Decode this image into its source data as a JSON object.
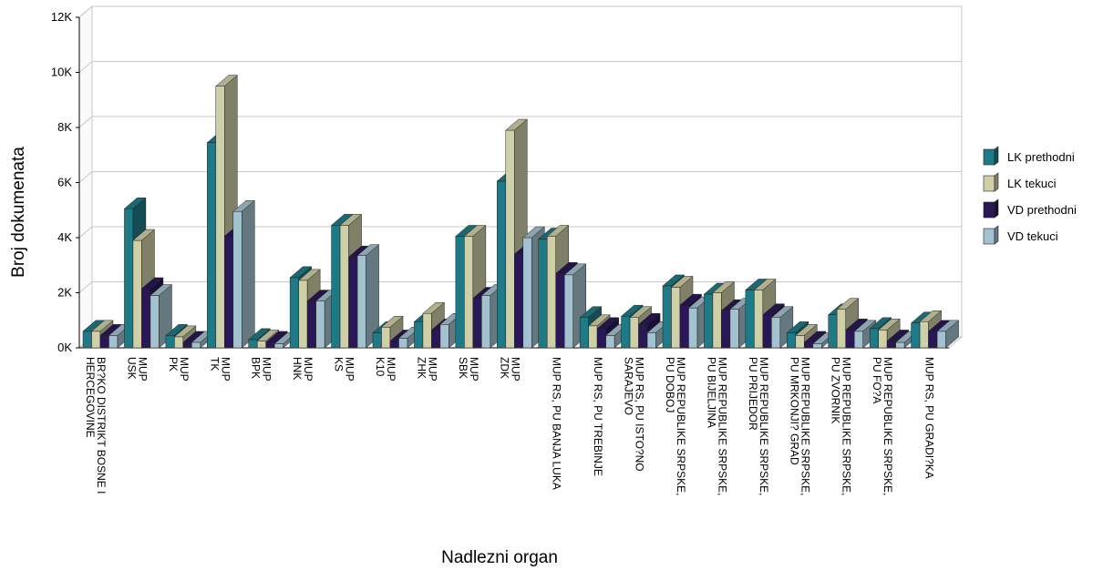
{
  "chart_data": {
    "type": "bar",
    "xlabel": "Nadlezni organ",
    "ylabel": "Broj dokumenata",
    "ylim": [
      0,
      12000
    ],
    "yticks": [
      "0K",
      "2K",
      "4K",
      "6K",
      "8K",
      "10K",
      "12K"
    ],
    "grid": true,
    "legend_position": "right",
    "categories": [
      [
        "BR?KO DISTRIKT BOSNE I",
        "HERCEGOVINE"
      ],
      [
        "MUP",
        "USK"
      ],
      [
        "MUP",
        "PK"
      ],
      [
        "MUP",
        "TK"
      ],
      [
        "MUP",
        "BPK"
      ],
      [
        "MUP",
        "HNK"
      ],
      [
        "MUP",
        "KS"
      ],
      [
        "MUP",
        "K10"
      ],
      [
        "MUP",
        "ZHK"
      ],
      [
        "MUP",
        "SBK"
      ],
      [
        "MUP",
        "ZDK"
      ],
      [
        "MUP RS, PU BANJA LUKA"
      ],
      [
        "MUP RS, PU TREBINJE"
      ],
      [
        "MUP RS, PU ISTO?NO",
        "SARAJEVO"
      ],
      [
        "MUP REPUBLIKE SRPSKE,",
        "PU DOBOJ"
      ],
      [
        "MUP REPUBLIKE SRPSKE,",
        "PU BIJELJINA"
      ],
      [
        "MUP REPUBLIKE SRPSKE,",
        "PU PRIJEDOR"
      ],
      [
        "MUP REPUBLIKE SRPSKE,",
        "PU MRKONJI? GRAD"
      ],
      [
        "MUP REPUBLIKE SRPSKE,",
        "PU ZVORNIK"
      ],
      [
        "MUP REPUBLIKE SRPSKE,",
        "PU FO?A"
      ],
      [
        "MUP RS, PU GRADI?KA"
      ]
    ],
    "series": [
      {
        "name": "LK prethodni",
        "color": "#1e7a86",
        "values": [
          600,
          5050,
          450,
          7450,
          300,
          2550,
          4450,
          550,
          950,
          4050,
          6050,
          3950,
          1100,
          1150,
          2250,
          1950,
          2100,
          550,
          1200,
          700,
          900
        ]
      },
      {
        "name": "LK tekuci",
        "color": "#cfcfa8",
        "values": [
          600,
          3900,
          400,
          9500,
          250,
          2450,
          4450,
          750,
          1250,
          4050,
          7900,
          4050,
          800,
          1100,
          2200,
          2000,
          2100,
          450,
          1400,
          650,
          950
        ]
      },
      {
        "name": "VD prethodni",
        "color": "#2a1757",
        "values": [
          450,
          2150,
          200,
          4050,
          200,
          1700,
          3300,
          250,
          650,
          1800,
          3400,
          2700,
          700,
          850,
          1550,
          1350,
          1200,
          200,
          650,
          250,
          600
        ]
      },
      {
        "name": "VD tekuci",
        "color": "#a3c2cf",
        "values": [
          450,
          1900,
          200,
          4950,
          150,
          1700,
          3350,
          350,
          850,
          1900,
          4000,
          2650,
          450,
          550,
          1450,
          1400,
          1100,
          150,
          600,
          200,
          600
        ]
      }
    ]
  }
}
